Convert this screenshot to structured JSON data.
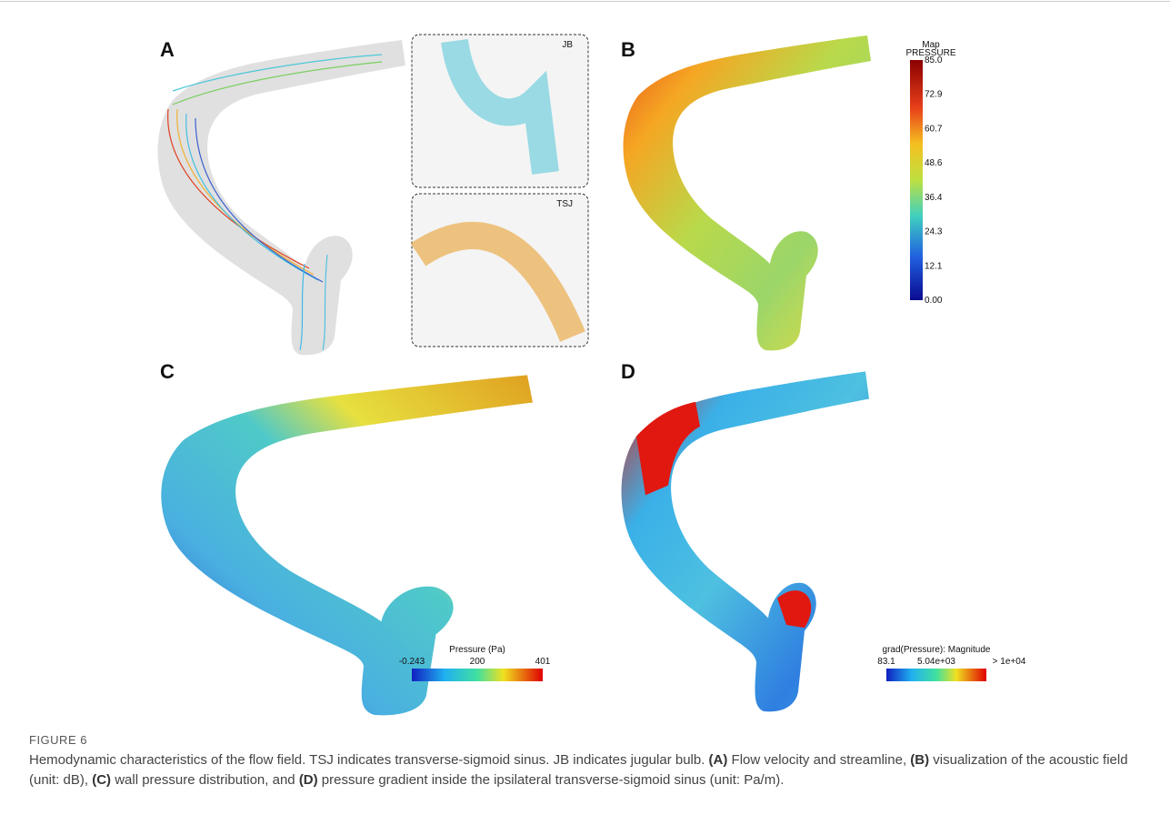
{
  "figure": {
    "panels": {
      "a": "A",
      "b": "B",
      "c": "C",
      "d": "D"
    },
    "insets": {
      "top": "JB",
      "bottom": "TSJ"
    },
    "colorbar_b": {
      "title_1": "Map",
      "title_2": "PRESSURE",
      "ticks": [
        "85.0",
        "72.9",
        "60.7",
        "48.6",
        "36.4",
        "24.3",
        "12.1",
        "0.00"
      ]
    },
    "colorbar_c": {
      "title": "Pressure (Pa)",
      "ticks": [
        "-0.243",
        "200",
        "401"
      ]
    },
    "colorbar_d": {
      "title": "grad(Pressure): Magnitude",
      "ticks": [
        "83.1",
        "5.04e+03",
        "> 1e+04"
      ]
    }
  },
  "caption": {
    "label": "FIGURE 6",
    "parts": [
      "Hemodynamic characteristics of the flow field. TSJ indicates transverse-sigmoid sinus. JB indicates jugular bulb. ",
      "(A)",
      " Flow velocity and streamline, ",
      "(B)",
      " visualization of the acoustic field (unit: dB), ",
      "(C)",
      " wall pressure distribution, and ",
      "(D)",
      " pressure gradient inside the ipsilateral transverse-sigmoid sinus (unit: Pa/m)."
    ]
  }
}
